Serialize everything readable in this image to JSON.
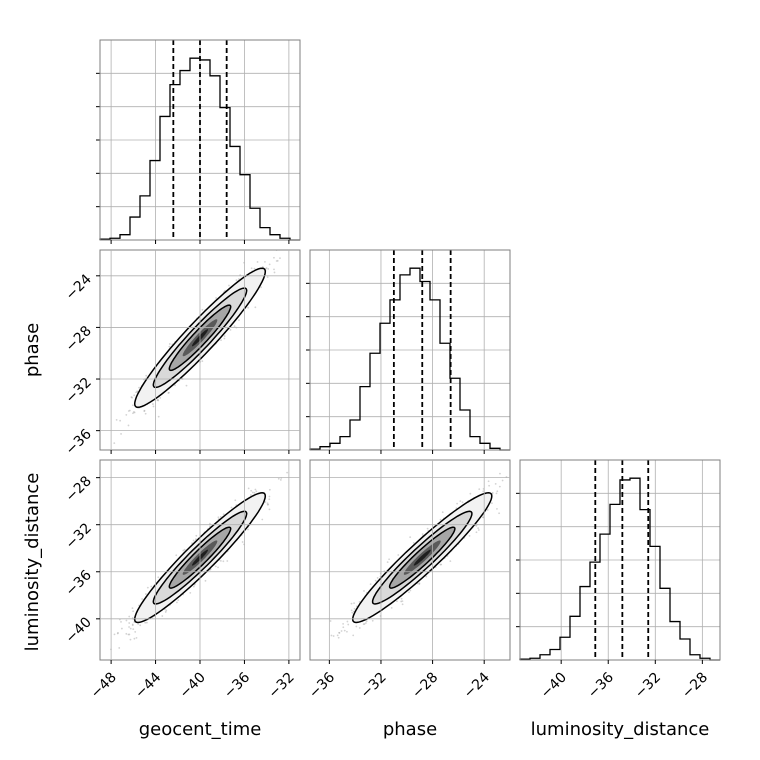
{
  "chart_data": {
    "type": "corner",
    "params": [
      "geocent_time",
      "phase",
      "luminosity_distance"
    ],
    "axis_labels": {
      "x": [
        "geocent_time",
        "phase",
        "luminosity_distance"
      ],
      "y": [
        "phase",
        "luminosity_distance"
      ]
    },
    "ranges": {
      "geocent_time": [
        -49.0,
        -31.0
      ],
      "phase": [
        -37.5,
        -22.0
      ],
      "luminosity_distance": [
        -43.5,
        -26.5
      ]
    },
    "ticks": {
      "geocent_time": {
        "values": [
          -48,
          -44,
          -40,
          -36,
          -32
        ],
        "labels": [
          "−48",
          "−44",
          "−40",
          "−36",
          "−32"
        ]
      },
      "phase": {
        "values": [
          -36,
          -32,
          -28,
          -24
        ],
        "labels": [
          "−36",
          "−32",
          "−28",
          "−24"
        ]
      },
      "luminosity_distance": {
        "values": [
          -40,
          -36,
          -32,
          -28
        ],
        "labels": [
          "−40",
          "−36",
          "−32",
          "−28"
        ]
      }
    },
    "histograms": {
      "geocent_time": {
        "bin_edges": [
          -49.0,
          -48.1,
          -47.2,
          -46.3,
          -45.4,
          -44.5,
          -43.6,
          -42.7,
          -41.8,
          -40.9,
          -40.0,
          -39.1,
          -38.2,
          -37.3,
          -36.4,
          -35.5,
          -34.6,
          -33.7,
          -32.8,
          -31.9,
          -31.0
        ],
        "counts": [
          0.5,
          1,
          3,
          13,
          25,
          45,
          70,
          88,
          96,
          103,
          102,
          93,
          75,
          53,
          37,
          18,
          7,
          3,
          1,
          0
        ],
        "quantiles": [
          -42.4,
          -40.0,
          -37.6
        ]
      },
      "phase": {
        "bin_edges": [
          -37.5,
          -36.725,
          -35.95,
          -35.175,
          -34.4,
          -33.625,
          -32.85,
          -32.075,
          -31.3,
          -30.525,
          -29.75,
          -28.975,
          -28.2,
          -27.425,
          -26.65,
          -25.875,
          -25.1,
          -24.325,
          -23.55,
          -22.775,
          -22.0
        ],
        "counts": [
          0.5,
          2,
          4,
          8,
          18,
          38,
          58,
          76,
          90,
          105,
          109,
          101,
          90,
          64,
          43,
          24,
          8,
          4,
          1,
          0
        ],
        "quantiles": [
          -31.0,
          -28.8,
          -26.6
        ]
      },
      "luminosity_distance": {
        "bin_edges": [
          -43.5,
          -42.65,
          -41.8,
          -40.95,
          -40.1,
          -39.25,
          -38.4,
          -37.55,
          -36.7,
          -35.85,
          -35.0,
          -34.15,
          -33.3,
          -32.45,
          -31.6,
          -30.75,
          -29.9,
          -29.05,
          -28.2,
          -27.35,
          -26.5
        ],
        "counts": [
          0.5,
          1,
          3,
          6,
          13,
          25,
          42,
          56,
          72,
          89,
          103,
          104,
          86,
          65,
          41,
          22,
          12,
          3,
          1,
          0
        ],
        "quantiles": [
          -37.1,
          -34.8,
          -32.6
        ]
      }
    },
    "joint": [
      {
        "x": "geocent_time",
        "y": "phase",
        "mean": [
          -40.0,
          -28.8
        ],
        "sd": [
          2.4,
          2.2
        ],
        "corr": 0.95
      },
      {
        "x": "geocent_time",
        "y": "luminosity_distance",
        "mean": [
          -40.0,
          -34.8
        ],
        "sd": [
          2.4,
          2.25
        ],
        "corr": 0.95
      },
      {
        "x": "phase",
        "y": "luminosity_distance",
        "mean": [
          -28.8,
          -34.8
        ],
        "sd": [
          2.2,
          2.25
        ],
        "corr": 0.95
      }
    ],
    "grid": true,
    "colors": {
      "line": "#000000",
      "scatter": "#9e9e9e",
      "grid": "#b0b0b0",
      "frame": "#7f7f7f"
    }
  }
}
